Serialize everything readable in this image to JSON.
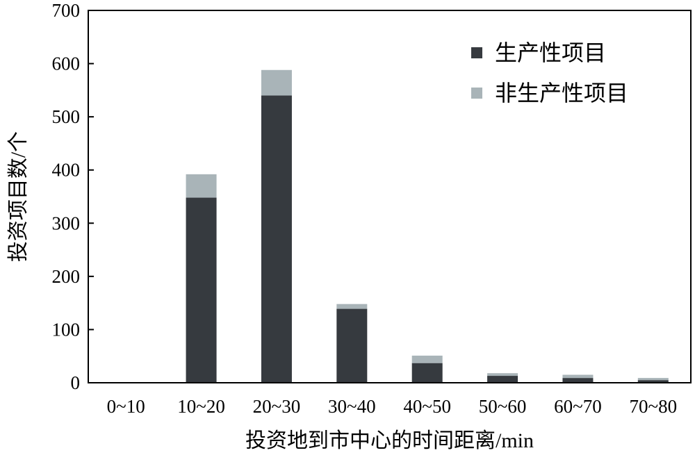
{
  "chart_data": {
    "type": "bar",
    "stacked": true,
    "categories": [
      "0~10",
      "10~20",
      "20~30",
      "30~40",
      "40~50",
      "50~60",
      "60~70",
      "70~80"
    ],
    "series": [
      {
        "name": "生产性项目",
        "color": "#363a3f",
        "values": [
          0,
          348,
          540,
          139,
          37,
          13,
          9,
          5
        ]
      },
      {
        "name": "非生产性项目",
        "color": "#a9b4b8",
        "values": [
          0,
          44,
          48,
          9,
          14,
          5,
          6,
          4
        ]
      }
    ],
    "xlabel": "投资地到市中心的时间距离/min",
    "ylabel": "投资项目数/个",
    "ylim": [
      0,
      700
    ],
    "yticks": [
      0,
      100,
      200,
      300,
      400,
      500,
      600,
      700
    ],
    "grid": false,
    "legend_position": "top-right"
  }
}
